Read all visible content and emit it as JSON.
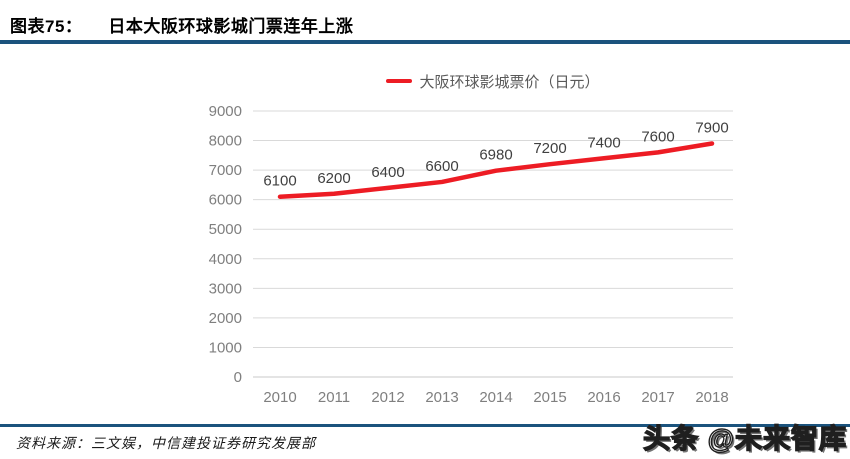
{
  "header": {
    "figure_label": "图表75：",
    "title": "日本大阪环球影城门票连年上涨"
  },
  "legend": {
    "label": "大阪环球影城票价（日元）"
  },
  "chart_data": {
    "type": "line",
    "categories": [
      "2010",
      "2011",
      "2012",
      "2013",
      "2014",
      "2015",
      "2016",
      "2017",
      "2018"
    ],
    "series": [
      {
        "name": "大阪环球影城票价（日元）",
        "values": [
          6100,
          6200,
          6400,
          6600,
          6980,
          7200,
          7400,
          7600,
          7900
        ]
      }
    ],
    "title": "",
    "xlabel": "",
    "ylabel": "",
    "ylim": [
      0,
      9000
    ],
    "ytick_step": 1000,
    "grid": true,
    "legend_position": "top-center",
    "data_labels": true
  },
  "footer": {
    "source": "资料来源：三文娱，中信建投证券研究发展部"
  },
  "watermark": {
    "text": "头条 @未来智库"
  },
  "colors": {
    "accent_blue": "#1B537D",
    "line_red": "#ED1C24",
    "grid_line": "#D9D9D9",
    "baseline": "#C9C9C9",
    "axis_text": "#7F7F7F",
    "data_label_text": "#404040"
  }
}
